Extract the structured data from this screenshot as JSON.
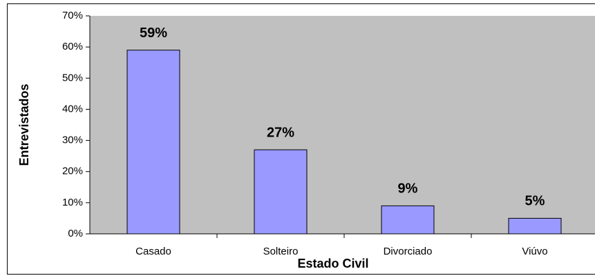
{
  "chart_data": {
    "type": "bar",
    "x_label": "Estado Civil",
    "y_label": "Entrevistados",
    "categories": [
      "Casado",
      "Solteiro",
      "Divorciado",
      "Viúvo"
    ],
    "values": [
      59,
      27,
      9,
      5
    ],
    "value_labels": [
      "59%",
      "27%",
      "9%",
      "5%"
    ],
    "color": "#9999ff",
    "ylim": [
      0,
      70
    ],
    "yticks": [
      {
        "value": 0,
        "label": "0%"
      },
      {
        "value": 10,
        "label": "10%"
      },
      {
        "value": 20,
        "label": "20%"
      },
      {
        "value": 30,
        "label": "30%"
      },
      {
        "value": 40,
        "label": "40%"
      },
      {
        "value": 50,
        "label": "50%"
      },
      {
        "value": 60,
        "label": "60%"
      },
      {
        "value": 70,
        "label": "70%"
      }
    ],
    "grid": false
  }
}
